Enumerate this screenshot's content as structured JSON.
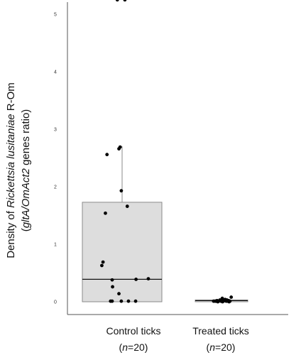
{
  "chart_data": {
    "type": "box",
    "ylabel": {
      "line1_prefix": "Density of ",
      "line1_italic": "Rickettsia lusitaniae",
      "line1_suffix": " R-Om",
      "line2_open": "(",
      "line2_italic": "gltA/OmAct2",
      "line2_suffix": " genes ratio)"
    },
    "ylim": [
      -0.2,
      5.5
    ],
    "yticks": [
      "0",
      "1",
      "2",
      "3",
      "4",
      "5"
    ],
    "categories": [
      {
        "name": "Control ticks",
        "n_prefix": "(",
        "n_italic": "n",
        "n_suffix": "=20)"
      },
      {
        "name": "Treated ticks",
        "n_prefix": "(",
        "n_italic": "n",
        "n_suffix": "=20)"
      }
    ],
    "boxes": [
      {
        "q1": 0.0,
        "median": 0.39,
        "q3": 1.73,
        "whisker_low": 0.0,
        "whisker_high": 2.7
      },
      {
        "q1": 0.0,
        "median": 0.02,
        "q3": 0.03,
        "whisker_low": 0.0,
        "whisker_high": 0.05
      }
    ],
    "points": [
      [
        {
          "y": 5.25,
          "jitter": -0.12
        },
        {
          "y": 5.25,
          "jitter": 0.07
        },
        {
          "y": 2.69,
          "jitter": -0.05
        },
        {
          "y": 2.66,
          "jitter": -0.08
        },
        {
          "y": 2.56,
          "jitter": -0.38
        },
        {
          "y": 1.93,
          "jitter": -0.02
        },
        {
          "y": 1.66,
          "jitter": 0.13
        },
        {
          "y": 1.54,
          "jitter": -0.42
        },
        {
          "y": 0.69,
          "jitter": -0.48
        },
        {
          "y": 0.63,
          "jitter": -0.51
        },
        {
          "y": 0.4,
          "jitter": 0.66
        },
        {
          "y": 0.38,
          "jitter": -0.25
        },
        {
          "y": 0.39,
          "jitter": 0.35
        },
        {
          "y": 0.26,
          "jitter": -0.24
        },
        {
          "y": 0.14,
          "jitter": -0.08
        },
        {
          "y": 0.01,
          "jitter": -0.29
        },
        {
          "y": 0.01,
          "jitter": -0.25
        },
        {
          "y": 0.01,
          "jitter": -0.02
        },
        {
          "y": 0.01,
          "jitter": 0.16
        },
        {
          "y": 0.01,
          "jitter": 0.34
        }
      ],
      [
        {
          "y": 0.08,
          "jitter": 0.37
        },
        {
          "y": 0.06,
          "jitter": 0.03
        },
        {
          "y": 0.04,
          "jitter": 0.14
        },
        {
          "y": 0.03,
          "jitter": -0.06
        },
        {
          "y": 0.03,
          "jitter": 0.21
        },
        {
          "y": 0.02,
          "jitter": 0.27
        },
        {
          "y": 0.02,
          "jitter": -0.17
        },
        {
          "y": 0.02,
          "jitter": 0.1
        },
        {
          "y": 0.01,
          "jitter": -0.3
        },
        {
          "y": 0.01,
          "jitter": -0.24
        },
        {
          "y": 0.01,
          "jitter": -0.21
        },
        {
          "y": 0.01,
          "jitter": -0.11
        },
        {
          "y": 0.01,
          "jitter": -0.02
        },
        {
          "y": 0.01,
          "jitter": 0.07
        },
        {
          "y": 0.01,
          "jitter": 0.18
        },
        {
          "y": 0.01,
          "jitter": 0.24
        },
        {
          "y": 0.01,
          "jitter": 0.32
        },
        {
          "y": 0.0,
          "jitter": -0.14
        },
        {
          "y": 0.0,
          "jitter": 0.04
        },
        {
          "y": 0.0,
          "jitter": 0.29
        }
      ]
    ],
    "colors": {
      "box_fill": "#dddddd",
      "box_stroke": "#8a8a8a",
      "median": "#111111",
      "point": "#000000",
      "axis": "#555555",
      "whisker": "#8a8a8a"
    }
  }
}
